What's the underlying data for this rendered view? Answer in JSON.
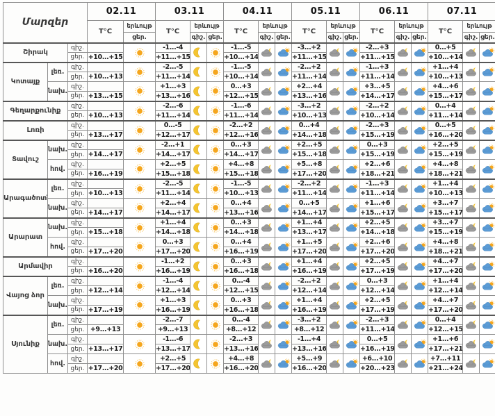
{
  "table": {
    "corner_label": "Մարզեր",
    "temp_header": "T°C",
    "phenomenon_header": "երևույթ",
    "night_label": "գիշ.",
    "day_label": "ցեր.",
    "dates": [
      {
        "label": "02.11",
        "night_icon": null,
        "day_icon": "sun"
      },
      {
        "label": "03.11",
        "night_icon": "moon",
        "day_icon": "sun"
      },
      {
        "label": "04.11",
        "night_icon": "cloud-moon",
        "day_icon": "cloud-sun"
      },
      {
        "label": "05.11",
        "night_icon": "cloud-moon",
        "day_icon": "cloud-sun"
      },
      {
        "label": "06.11",
        "night_icon": "cloud-moon",
        "day_icon": "cloud-sun"
      },
      {
        "label": "07.11",
        "night_icon": "cloud-moon",
        "day_icon": "cloud-sun"
      }
    ],
    "regions": [
      {
        "name": "Շիրակ",
        "zones": [
          {
            "label": "",
            "rows": [
              [
                "",
                "+10...+15"
              ],
              [
                "-1...-4",
                "+11...+15"
              ],
              [
                "-1...-5",
                "+10...+14"
              ],
              [
                "-3...+2",
                "+11...+15"
              ],
              [
                "-2...+3",
                "+11...+15"
              ],
              [
                "0...+5",
                "+10...+14"
              ]
            ]
          }
        ]
      },
      {
        "name": "Կոտայք",
        "zones": [
          {
            "label": "լեռ.",
            "rows": [
              [
                "",
                "+10...+13"
              ],
              [
                "-2...-5",
                "+11...+14"
              ],
              [
                "-1...-5",
                "+10...+14"
              ],
              [
                "-2...+2",
                "+11...+14"
              ],
              [
                "-1...+3",
                "+11...+14"
              ],
              [
                "+1...+4",
                "+10...+13"
              ]
            ]
          },
          {
            "label": "նախ.",
            "rows": [
              [
                "",
                "+13...+15"
              ],
              [
                "+1...+3",
                "+13...+16"
              ],
              [
                "0...+3",
                "+12...+15"
              ],
              [
                "+2...+4",
                "+13...+16"
              ],
              [
                "+3...+5",
                "+14...+17"
              ],
              [
                "+4...+6",
                "+15...+17"
              ]
            ]
          }
        ]
      },
      {
        "name": "Գեղարքունիք",
        "zones": [
          {
            "label": "",
            "rows": [
              [
                "",
                "+10...+13"
              ],
              [
                "-2...-6",
                "+11...+14"
              ],
              [
                "-1...-6",
                "+11...+14"
              ],
              [
                "-3...+2",
                "+10...+13"
              ],
              [
                "-2...+2",
                "+10...+14"
              ],
              [
                "0...+4",
                "+11...+14"
              ]
            ]
          }
        ]
      },
      {
        "name": "Լոռի",
        "zones": [
          {
            "label": "",
            "rows": [
              [
                "",
                "+13...+17"
              ],
              [
                "0...-5",
                "+12...+17"
              ],
              [
                "-2...+2",
                "+12...+16"
              ],
              [
                "0...+4",
                "+14...+18"
              ],
              [
                "-2...+3",
                "+15...+19"
              ],
              [
                "0...+5",
                "+16...+20"
              ]
            ]
          }
        ]
      },
      {
        "name": "Տավուշ",
        "zones": [
          {
            "label": "նախ.",
            "rows": [
              [
                "",
                "+14...+17"
              ],
              [
                "-2...+1",
                "+14...+17"
              ],
              [
                "0...+3",
                "+14...+17"
              ],
              [
                "+2...+5",
                "+15...+18"
              ],
              [
                "0...+3",
                "+15...+19"
              ],
              [
                "+2...+5",
                "+15...+19"
              ]
            ]
          },
          {
            "label": "հով.",
            "rows": [
              [
                "",
                "+16...+19"
              ],
              [
                "+2...+5",
                "+15...+18"
              ],
              [
                "+4...+8",
                "+15...+18"
              ],
              [
                "+5...+8",
                "+17...+20"
              ],
              [
                "+2...+6",
                "+18...+21"
              ],
              [
                "+4...+8",
                "+18...+21"
              ]
            ]
          }
        ]
      },
      {
        "name": "Արագածոտն",
        "zones": [
          {
            "label": "լեռ.",
            "rows": [
              [
                "",
                "+10...+13"
              ],
              [
                "-2...-5",
                "+11...+14"
              ],
              [
                "-1...-5",
                "+10...+13"
              ],
              [
                "-2...+2",
                "+11...+14"
              ],
              [
                "-1...+3",
                "+11...+14"
              ],
              [
                "+1...+4",
                "+10...+13"
              ]
            ]
          },
          {
            "label": "նախ.",
            "rows": [
              [
                "",
                "+14...+17"
              ],
              [
                "+2...+4",
                "+14...+17"
              ],
              [
                "0...+4",
                "+13...+16"
              ],
              [
                "0...+5",
                "+14...+17"
              ],
              [
                "+1...+6",
                "+15...+17"
              ],
              [
                "+3...+7",
                "+15...+17"
              ]
            ]
          }
        ]
      },
      {
        "name": "Արարատ",
        "zones": [
          {
            "label": "նախ.",
            "rows": [
              [
                "",
                "+15...+18"
              ],
              [
                "+1...+4",
                "+14...+18"
              ],
              [
                "0...+3",
                "+14...+18"
              ],
              [
                "+1...+4",
                "+13...+17"
              ],
              [
                "+2...+5",
                "+14...+18"
              ],
              [
                "+3...+7",
                "+15...+19"
              ]
            ]
          },
          {
            "label": "հով.",
            "rows": [
              [
                "",
                "+17...+20"
              ],
              [
                "0...+3",
                "+17...+20"
              ],
              [
                "0...+4",
                "+16...+19"
              ],
              [
                "+1...+5",
                "+17...+20"
              ],
              [
                "+2...+6",
                "+17...+20"
              ],
              [
                "+4...+8",
                "+18...+21"
              ]
            ]
          }
        ]
      },
      {
        "name": "Արմավիր",
        "zones": [
          {
            "label": "",
            "rows": [
              [
                "",
                "+16...+20"
              ],
              [
                "-1...+2",
                "+16...+19"
              ],
              [
                "0...+3",
                "+16...+18"
              ],
              [
                "+1...+4",
                "+16...+19"
              ],
              [
                "+2...+5",
                "+17...+19"
              ],
              [
                "+4...+7",
                "+17...+20"
              ]
            ]
          }
        ]
      },
      {
        "name": "Վայոց ձոր",
        "zones": [
          {
            "label": "լեռ.",
            "rows": [
              [
                "",
                "+12...+14"
              ],
              [
                "-1...-4",
                "+12...+14"
              ],
              [
                "0...-4",
                "+12...+15"
              ],
              [
                "-2...+2",
                "+12...+14"
              ],
              [
                "0...+3",
                "+12...+14"
              ],
              [
                "+1...+4",
                "+12...+14"
              ]
            ]
          },
          {
            "label": "նախ.",
            "rows": [
              [
                "",
                "+17...+19"
              ],
              [
                "+1...+3",
                "+16...+19"
              ],
              [
                "0...+3",
                "+16...+18"
              ],
              [
                "+1...+4",
                "+16...+19"
              ],
              [
                "+2...+5",
                "+17...+19"
              ],
              [
                "+4...+7",
                "+17...+20"
              ]
            ]
          }
        ]
      },
      {
        "name": "Սյունիք",
        "zones": [
          {
            "label": "լեռ.",
            "rows": [
              [
                "",
                "+9...+13"
              ],
              [
                "-2...-7",
                "+9...+13"
              ],
              [
                "0...-4",
                "+8...+12"
              ],
              [
                "-3...+2",
                "+8...+12"
              ],
              [
                "-2...+3",
                "+11...+14"
              ],
              [
                "0...+4",
                "+12...+15"
              ]
            ]
          },
          {
            "label": "նախ.",
            "rows": [
              [
                "",
                "+13...+17"
              ],
              [
                "-1...-6",
                "+13...+17"
              ],
              [
                "-2...+3",
                "+13...+16"
              ],
              [
                "-1...+4",
                "+13...+16"
              ],
              [
                "0...+5",
                "+16...+19"
              ],
              [
                "+1...+6",
                "+17...+21"
              ]
            ]
          },
          {
            "label": "հով.",
            "rows": [
              [
                "",
                "+17...+20"
              ],
              [
                "+2...+5",
                "+17...+20"
              ],
              [
                "+4...+8",
                "+16...+20"
              ],
              [
                "+5...+9",
                "+16...+20"
              ],
              [
                "+6...+10",
                "+20...+23"
              ],
              [
                "+7...+11",
                "+21...+24"
              ]
            ]
          }
        ]
      }
    ]
  },
  "colors": {
    "sun": "#f5a61d",
    "sun_rays": "#f6b93c",
    "moon": "#f4c430",
    "moon_edge": "#cfa31d",
    "night_cloud": "#9b9b9b",
    "night_cloud_edge": "#7f7f7f",
    "day_cloud": "#5b9bd5",
    "day_cloud_edge": "#4a88bf",
    "border": "#8f8f8f",
    "group_border": "#565656"
  }
}
